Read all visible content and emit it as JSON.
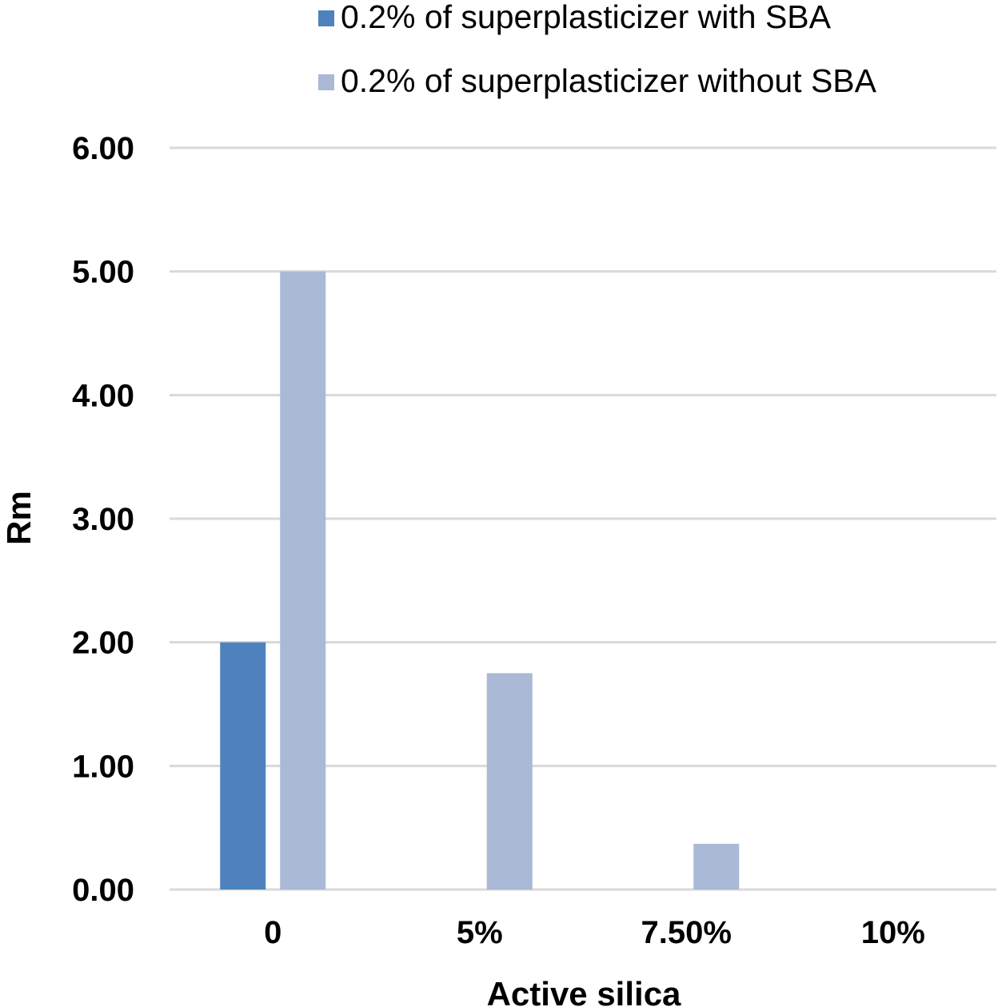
{
  "chart_data": {
    "type": "bar",
    "title": "",
    "xlabel": "Active silica",
    "ylabel": "Rm",
    "categories": [
      "0",
      "5%",
      "7.50%",
      "10%"
    ],
    "ylim": [
      0,
      6
    ],
    "yticks": [
      "0.00",
      "1.00",
      "2.00",
      "3.00",
      "4.00",
      "5.00",
      "6.00"
    ],
    "grid": true,
    "legend_position": "top",
    "series": [
      {
        "name": "0.2% of superplasticizer with SBA",
        "color": "#4F81BD",
        "values": [
          2.0,
          0,
          0,
          0
        ]
      },
      {
        "name": "0.2% of superplasticizer without SBA",
        "color": "#A9B9D6",
        "values": [
          5.0,
          1.75,
          0.37,
          0
        ]
      }
    ]
  }
}
